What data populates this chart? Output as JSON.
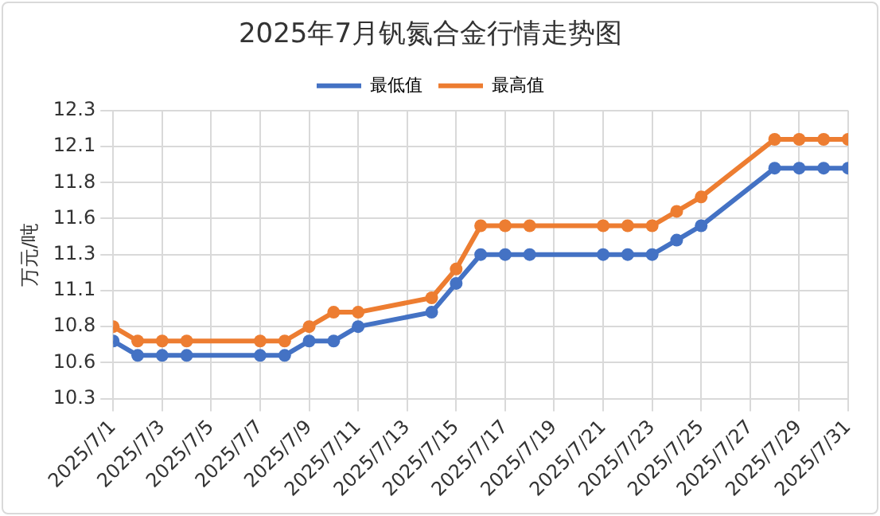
{
  "chart_data": {
    "type": "line",
    "title": "2025年7月钒氮合金行情走势图",
    "ylabel": "万元/吨",
    "x": [
      "2025-07-01",
      "2025-07-02",
      "2025-07-03",
      "2025-07-04",
      "2025-07-07",
      "2025-07-08",
      "2025-07-09",
      "2025-07-10",
      "2025-07-11",
      "2025-07-14",
      "2025-07-15",
      "2025-07-16",
      "2025-07-17",
      "2025-07-18",
      "2025-07-21",
      "2025-07-22",
      "2025-07-23",
      "2025-07-24",
      "2025-07-25",
      "2025-07-28",
      "2025-07-29",
      "2025-07-30",
      "2025-07-31"
    ],
    "series": [
      {
        "name": "最低值",
        "color": "#4472c4",
        "values": [
          10.7,
          10.6,
          10.6,
          10.6,
          10.6,
          10.6,
          10.7,
          10.7,
          10.8,
          10.9,
          11.1,
          11.3,
          11.3,
          11.3,
          11.3,
          11.3,
          11.3,
          11.4,
          11.5,
          11.9,
          11.9,
          11.9,
          11.9
        ]
      },
      {
        "name": "最高值",
        "color": "#ed7d31",
        "values": [
          10.8,
          10.7,
          10.7,
          10.7,
          10.7,
          10.7,
          10.8,
          10.9,
          10.9,
          11.0,
          11.2,
          11.5,
          11.5,
          11.5,
          11.5,
          11.5,
          11.5,
          11.6,
          11.7,
          12.1,
          12.1,
          12.1,
          12.1
        ]
      }
    ],
    "xlim": [
      "2025-07-01",
      "2025-07-31"
    ],
    "xticks": [
      {
        "value": "2025-07-01",
        "label": "2025/7/1"
      },
      {
        "value": "2025-07-03",
        "label": "2025/7/3"
      },
      {
        "value": "2025-07-05",
        "label": "2025/7/5"
      },
      {
        "value": "2025-07-07",
        "label": "2025/7/7"
      },
      {
        "value": "2025-07-09",
        "label": "2025/7/9"
      },
      {
        "value": "2025-07-11",
        "label": "2025/7/11"
      },
      {
        "value": "2025-07-13",
        "label": "2025/7/13"
      },
      {
        "value": "2025-07-15",
        "label": "2025/7/15"
      },
      {
        "value": "2025-07-17",
        "label": "2025/7/17"
      },
      {
        "value": "2025-07-19",
        "label": "2025/7/19"
      },
      {
        "value": "2025-07-21",
        "label": "2025/7/21"
      },
      {
        "value": "2025-07-23",
        "label": "2025/7/23"
      },
      {
        "value": "2025-07-25",
        "label": "2025/7/25"
      },
      {
        "value": "2025-07-27",
        "label": "2025/7/27"
      },
      {
        "value": "2025-07-29",
        "label": "2025/7/29"
      },
      {
        "value": "2025-07-31",
        "label": "2025/7/31"
      }
    ],
    "ylim": [
      10.3,
      12.3
    ],
    "yticks": [
      10.3,
      {
        "value": 10.55,
        "label": "10.6"
      },
      10.8,
      {
        "value": 11.05,
        "label": "11.1"
      },
      11.3,
      {
        "value": 11.55,
        "label": "11.6"
      },
      11.8,
      {
        "value": 12.05,
        "label": "12.1"
      },
      12.3
    ],
    "grid": true,
    "legend": "top",
    "marker": "circle",
    "line_style": "solid"
  }
}
